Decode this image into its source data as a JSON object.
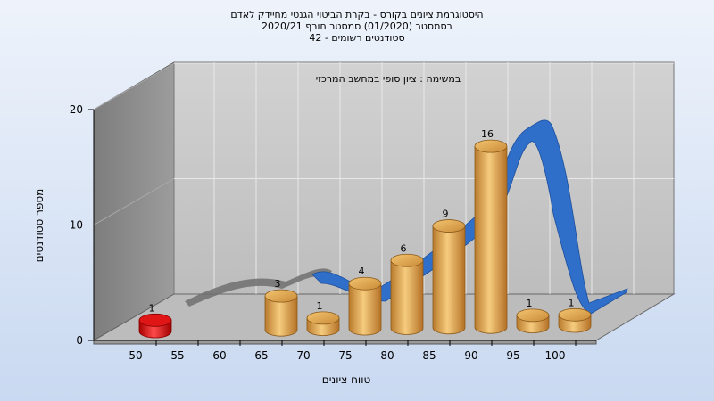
{
  "chart": {
    "title_lines": [
      "היסטוגרמת ציונים בקורס - בקרת הביטוי הגנטי מחיידק לאדם",
      "בסמסטר  (01/2020)  סמסטר חורף  2020/21",
      "סטודנטים רשומים - 42"
    ],
    "subtitle": "במשימה : ציון סופי במחשב המרכזי"
  },
  "chart_data": {
    "type": "bar",
    "title": "היסטוגרמת ציונים בקורס - בקרת הביטוי הגנטי מחיידק לאדם",
    "subtitle": "במשימה : ציון סופי במחשב המרכזי",
    "xlabel": "טווח ציונים",
    "ylabel": "מספר סטודנטים",
    "ylim": [
      0,
      20
    ],
    "y_ticks": [
      "0",
      "10",
      "20"
    ],
    "x_ticks": [
      "50",
      "55",
      "60",
      "65",
      "70",
      "75",
      "80",
      "85",
      "90",
      "95",
      "100"
    ],
    "categories": [
      "50",
      "55",
      "60",
      "65",
      "70",
      "75",
      "80",
      "85",
      "90",
      "95",
      "100"
    ],
    "values": [
      1,
      0,
      0,
      3,
      1,
      4,
      6,
      9,
      16,
      1,
      1
    ],
    "labels": [
      "1",
      "",
      "",
      "3",
      "1",
      "4",
      "6",
      "9",
      "16",
      "1",
      "1"
    ],
    "grid": true,
    "colors": {
      "bar": "#e0a850",
      "bar_fail": "#dd1111",
      "curve": "#2f6fc9",
      "curve_back": "#777777",
      "back_wall": "#c8c8c8",
      "side_wall": "#8c8c8c",
      "floor": "#bdbdbd"
    }
  }
}
